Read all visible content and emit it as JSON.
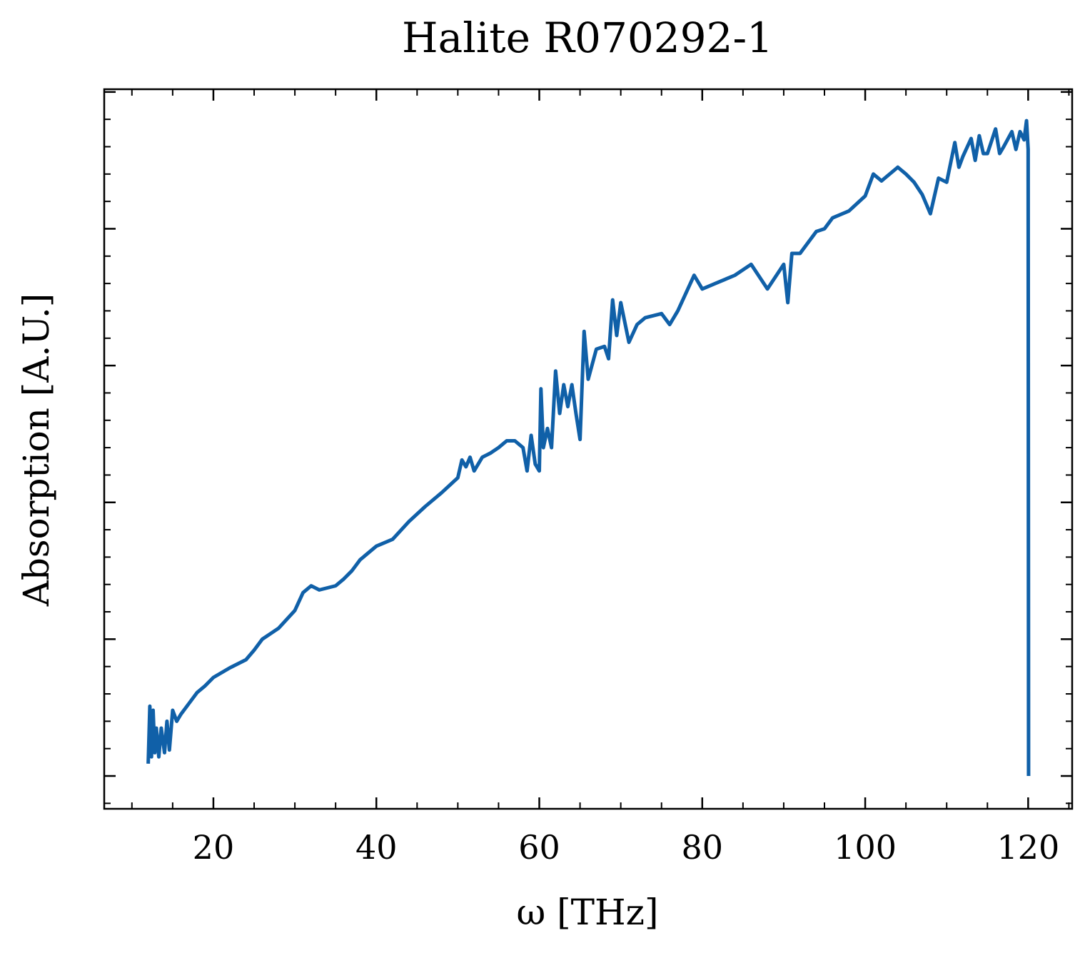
{
  "chart_data": {
    "type": "line",
    "title": "Halite R070292-1",
    "x_label": "ω [THz]",
    "y_label": "Absorption [A.U.]",
    "x": [
      12,
      12.2,
      12.4,
      12.6,
      12.8,
      13,
      13.3,
      13.6,
      14,
      14.3,
      14.6,
      15,
      15.5,
      16,
      17,
      18,
      19,
      20,
      22,
      24,
      25,
      26,
      28,
      30,
      31,
      32,
      33,
      35,
      36,
      37,
      38,
      40,
      42,
      44,
      46,
      48,
      50,
      50.5,
      51,
      51.5,
      52,
      53,
      54,
      55,
      56,
      57,
      58,
      58.5,
      59,
      59.5,
      60,
      60.2,
      60.5,
      61,
      61.5,
      62,
      62.5,
      63,
      63.5,
      64,
      64.5,
      65,
      65.5,
      66,
      67,
      68,
      68.5,
      69,
      69.5,
      70,
      71,
      72,
      73,
      75,
      76,
      77,
      78,
      79,
      80,
      82,
      84,
      86,
      88,
      90,
      90.5,
      91,
      92,
      93,
      94,
      95,
      96,
      98,
      100,
      101,
      102,
      104,
      105,
      106,
      107,
      108,
      109,
      110,
      111,
      111.5,
      112,
      113,
      113.5,
      114,
      114.5,
      115,
      116,
      116.5,
      117,
      118,
      118.5,
      119,
      119.5,
      119.8,
      120,
      120.05
    ],
    "values": [
      9,
      51,
      14,
      48,
      17,
      35,
      14,
      35,
      17,
      40,
      19,
      48,
      40,
      45,
      53,
      61,
      66,
      72,
      79,
      85,
      92,
      100,
      108,
      121,
      134,
      139,
      136,
      139,
      144,
      150,
      158,
      168,
      173,
      186,
      197,
      207,
      218,
      231,
      226,
      233,
      223,
      233,
      236,
      240,
      245,
      245,
      240,
      223,
      249,
      228,
      223,
      283,
      240,
      254,
      240,
      296,
      265,
      286,
      270,
      286,
      265,
      246,
      325,
      290,
      312,
      314,
      305,
      348,
      322,
      346,
      317,
      330,
      335,
      338,
      330,
      340,
      353,
      366,
      356,
      361,
      366,
      374,
      356,
      374,
      346,
      382,
      382,
      390,
      398,
      400,
      408,
      413,
      424,
      440,
      435,
      445,
      440,
      434,
      425,
      411,
      437,
      434,
      463,
      445,
      453,
      466,
      450,
      468,
      455,
      455,
      473,
      455,
      460,
      471,
      458,
      471,
      465,
      479,
      458,
      0
    ],
    "color": "#1060a8",
    "xlim": [
      6.6,
      125.4
    ],
    "xticks": [
      20,
      40,
      60,
      80,
      100,
      120
    ],
    "ylim": [
      -24,
      502
    ],
    "yticks": [
      0,
      100,
      200,
      300,
      400,
      500
    ],
    "y_tick_labels": false,
    "x_minor": 3,
    "y_minor": 4
  }
}
